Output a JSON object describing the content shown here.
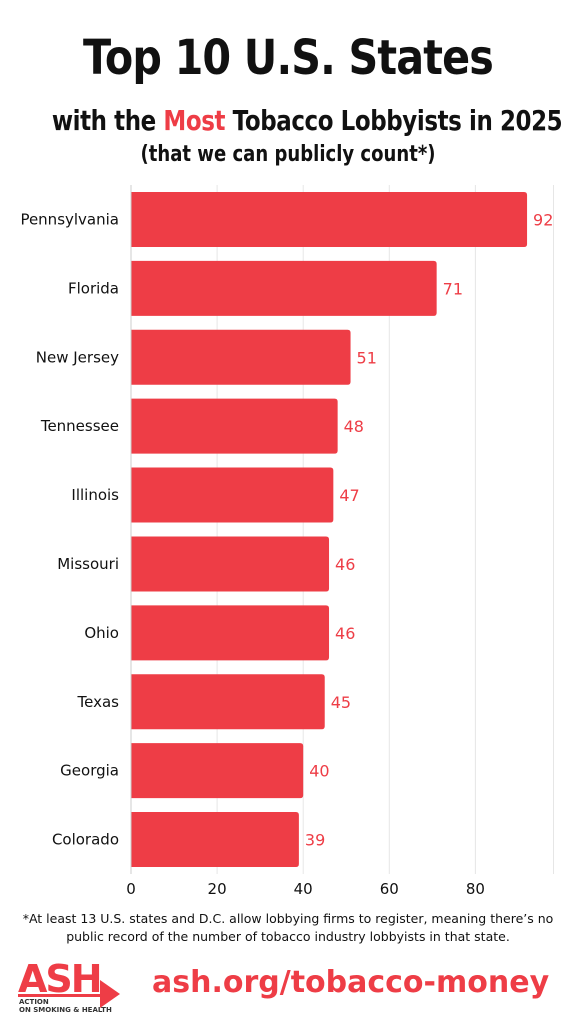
{
  "header": {
    "title_line1": "Top 10 U.S. States",
    "title_line2_pre": "with the ",
    "title_line2_accent": "Most",
    "title_line2_post": " Tobacco Lobbyists in 2025",
    "subtitle": "(that we can publicly count*)"
  },
  "colors": {
    "accent": "#ee3d46",
    "bar": "#ee3d46",
    "text": "#111111",
    "grid": "#e6e6e6"
  },
  "chart_data": {
    "type": "bar",
    "orientation": "horizontal",
    "categories": [
      "Pennsylvania",
      "Florida",
      "New Jersey",
      "Tennessee",
      "Illinois",
      "Missouri",
      "Ohio",
      "Texas",
      "Georgia",
      "Colorado"
    ],
    "values": [
      92,
      71,
      51,
      48,
      47,
      46,
      46,
      45,
      40,
      39
    ],
    "xticks": [
      0,
      20,
      40,
      60,
      80
    ],
    "xlim": [
      0,
      100
    ],
    "grid": true,
    "xlabel": "",
    "ylabel": ""
  },
  "footer": {
    "footnote": "*At least 13 U.S. states and D.C. allow lobbying firms to register, meaning there’s no public record of the number of tobacco industry lobbyists in that state.",
    "url": "ash.org/tobacco-money",
    "logo_text": "ASH",
    "logo_subtext_line1": "ACTION",
    "logo_subtext_line2": "ON SMOKING & HEALTH"
  }
}
